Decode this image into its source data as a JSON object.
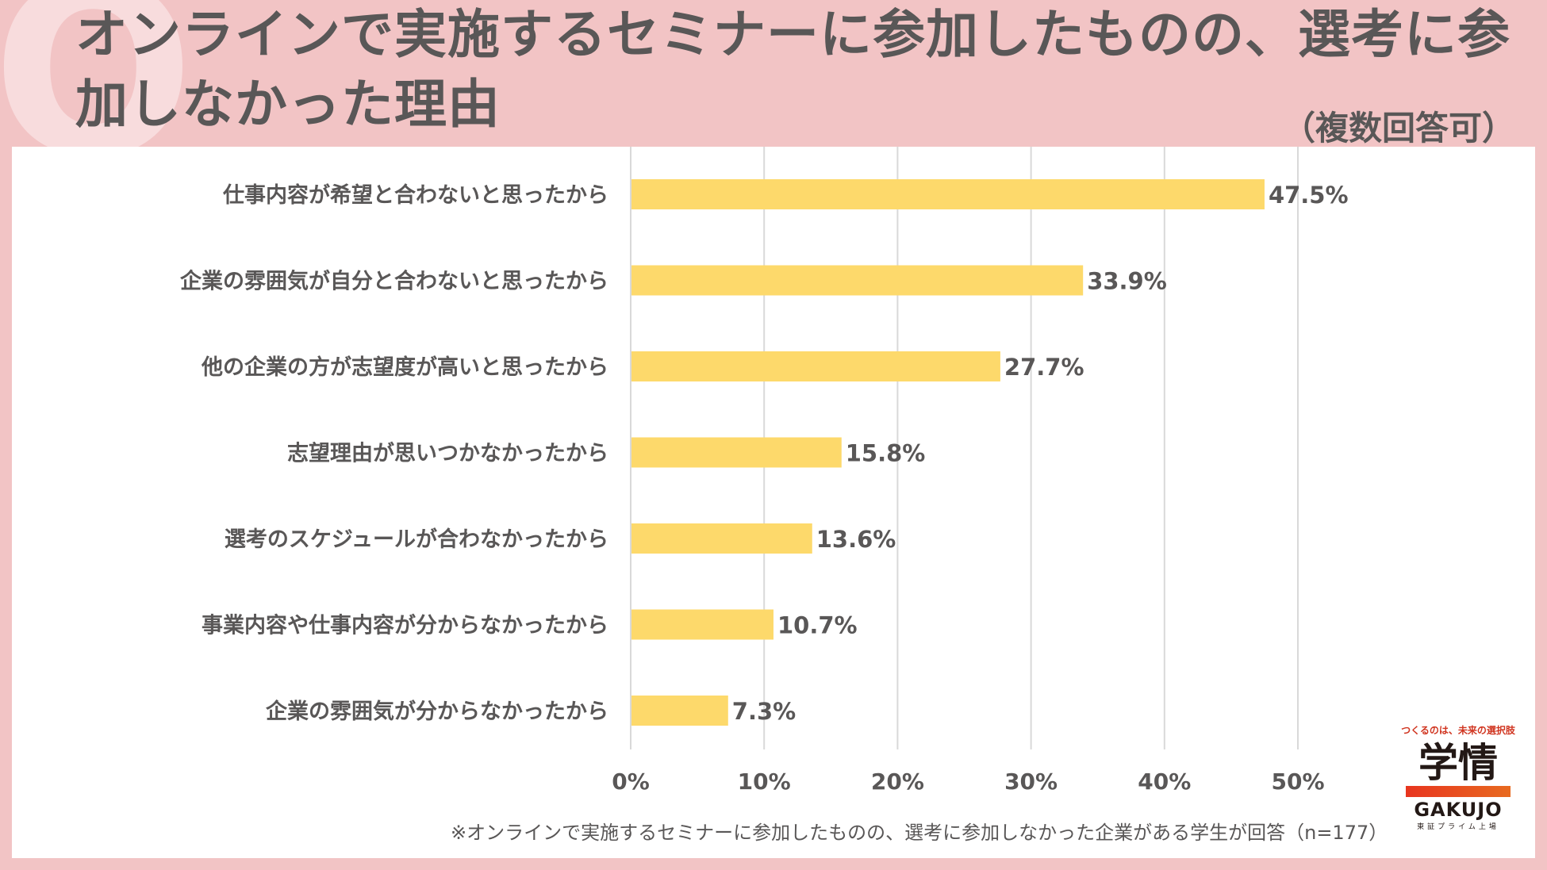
{
  "header": {
    "title": "オンラインで実施するセミナーに参加したものの、選考に参加しなかった理由",
    "subtitle": "（複数回答可）",
    "q_mark": "Q"
  },
  "footnote": "※オンラインで実施するセミナーに参加したものの、選考に参加しなかった企業がある学生が回答（n=177）",
  "logo": {
    "tagline": "つくるのは、未来の選択肢",
    "kanji": "学情",
    "roman": "GAKUJO",
    "listing": "東証プライム上場"
  },
  "colors": {
    "bar": "#fdd96b",
    "text": "#595757",
    "grid": "#d9d9d9",
    "background": "#f2c4c5"
  },
  "chart_data": {
    "type": "bar",
    "orientation": "horizontal",
    "categories": [
      "仕事内容が希望と合わないと思ったから",
      "企業の雰囲気が自分と合わないと思ったから",
      "他の企業の方が志望度が高いと思ったから",
      "志望理由が思いつかなかったから",
      "選考のスケジュールが合わなかったから",
      "事業内容や仕事内容が分からなかったから",
      "企業の雰囲気が分からなかったから"
    ],
    "values": [
      47.5,
      33.9,
      27.7,
      15.8,
      13.6,
      10.7,
      7.3
    ],
    "value_labels": [
      "47.5%",
      "33.9%",
      "27.7%",
      "15.8%",
      "13.6%",
      "10.7%",
      "7.3%"
    ],
    "xlim": [
      0,
      50
    ],
    "xticks": [
      0,
      10,
      20,
      30,
      40,
      50
    ],
    "xtick_labels": [
      "0%",
      "10%",
      "20%",
      "30%",
      "40%",
      "50%"
    ],
    "grid": true
  }
}
